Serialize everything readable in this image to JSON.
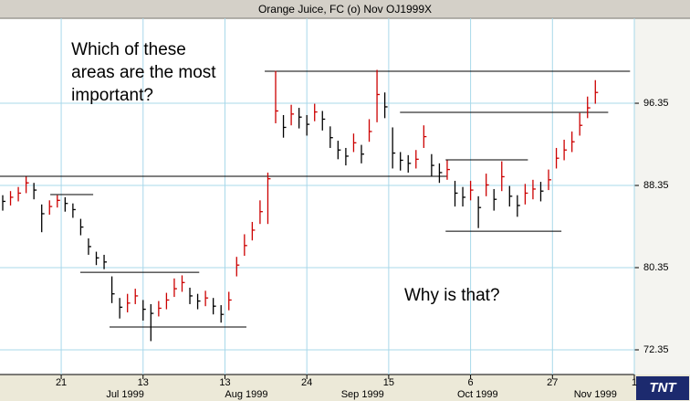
{
  "chart_data": {
    "type": "ohlc",
    "title": "Orange Juice, FC (o) Nov OJ1999X",
    "annotations": [
      {
        "lines": [
          "Which of these",
          "areas are the most",
          "important?"
        ],
        "x": 17.6,
        "y": 101.5
      },
      {
        "lines": [
          "Why is that?"
        ],
        "x": 103,
        "y": 77.6
      }
    ],
    "x": [
      0,
      2,
      4,
      6,
      8,
      10,
      12,
      14,
      16,
      18,
      20,
      22,
      24,
      26,
      28,
      30,
      32,
      34,
      36,
      38,
      40,
      42,
      44,
      46,
      48,
      50,
      52,
      54,
      56,
      58,
      60,
      62,
      64,
      66,
      68,
      70,
      72,
      74,
      76,
      78,
      80,
      82,
      84,
      86,
      88,
      90,
      92,
      94,
      96,
      98,
      100,
      102,
      104,
      106,
      108,
      110,
      112,
      114,
      116,
      118,
      120,
      122,
      124,
      126,
      128,
      130,
      132,
      134,
      136,
      138,
      140,
      142,
      144,
      146,
      148,
      150,
      152
    ],
    "high": [
      87.4,
      87.8,
      88.2,
      89.2,
      88.6,
      86.5,
      86.9,
      87.4,
      87.2,
      86.6,
      85.1,
      83.2,
      81.9,
      81.6,
      79.5,
      77.4,
      77.8,
      78.3,
      77.2,
      76.8,
      77.1,
      77.9,
      79.3,
      79.6,
      78.4,
      77.8,
      78.1,
      77.4,
      76.7,
      78.0,
      81.4,
      83.6,
      84.8,
      86.9,
      89.6,
      99.5,
      95.2,
      96.2,
      95.9,
      95.2,
      96.3,
      95.6,
      94.1,
      92.7,
      92.0,
      93.4,
      92.3,
      94.8,
      99.6,
      97.4,
      94.0,
      91.6,
      91.3,
      91.8,
      94.2,
      91.4,
      90.5,
      90.8,
      88.8,
      88.2,
      88.8,
      87.3,
      89.5,
      88.0,
      90.7,
      88.3,
      87.4,
      88.5,
      88.9,
      88.7,
      89.9,
      92.0,
      92.8,
      93.6,
      95.4,
      97.0,
      98.6
    ],
    "low": [
      85.9,
      86.4,
      86.8,
      87.6,
      87.0,
      83.8,
      85.5,
      86.2,
      85.8,
      85.2,
      83.5,
      81.6,
      80.6,
      80.2,
      76.9,
      75.4,
      76.0,
      76.8,
      75.2,
      73.2,
      75.6,
      76.3,
      77.5,
      78.0,
      76.8,
      76.3,
      76.6,
      75.8,
      75.0,
      76.2,
      79.5,
      81.5,
      83.0,
      84.6,
      84.6,
      94.4,
      93.0,
      94.2,
      93.9,
      93.2,
      94.6,
      93.7,
      92.0,
      90.9,
      90.3,
      91.6,
      90.5,
      92.6,
      94.5,
      94.9,
      90.0,
      89.8,
      89.6,
      90.0,
      92.0,
      89.2,
      88.6,
      88.9,
      86.3,
      86.3,
      86.9,
      84.2,
      87.3,
      85.9,
      87.8,
      86.3,
      85.3,
      86.5,
      87.0,
      86.8,
      87.9,
      90.0,
      90.8,
      91.6,
      93.2,
      94.9,
      96.3
    ],
    "close": [
      86.8,
      87.2,
      87.6,
      88.6,
      87.9,
      85.6,
      86.3,
      86.9,
      86.6,
      86.0,
      84.3,
      82.4,
      81.3,
      80.9,
      77.8,
      76.5,
      76.9,
      77.6,
      76.3,
      75.9,
      76.4,
      77.2,
      78.3,
      78.9,
      77.6,
      77.1,
      77.4,
      76.6,
      75.8,
      77.2,
      80.6,
      82.5,
      84.0,
      85.8,
      89.0,
      95.6,
      94.0,
      95.3,
      95.0,
      94.3,
      95.5,
      94.8,
      93.0,
      91.8,
      91.2,
      92.5,
      91.4,
      93.6,
      97.2,
      96.0,
      91.5,
      90.8,
      90.5,
      90.9,
      93.1,
      90.3,
      89.6,
      89.9,
      87.6,
      87.2,
      87.9,
      86.2,
      88.4,
      87.0,
      89.2,
      87.3,
      86.4,
      87.6,
      88.0,
      87.8,
      88.9,
      91.0,
      91.8,
      92.6,
      94.2,
      95.9,
      97.4
    ],
    "up_color": "#cc0000",
    "down_color": "#000000",
    "levels": [
      {
        "value": 99.46,
        "x": [
          67.2,
          160.9
        ]
      },
      {
        "value": 95.46,
        "x": [
          101.9,
          155.3
        ]
      },
      {
        "value": 89.24,
        "x": [
          -0.7,
          114.1
        ]
      },
      {
        "value": 87.46,
        "x": [
          12.2,
          23.2
        ]
      },
      {
        "value": 90.84,
        "x": [
          113.6,
          134.7
        ]
      },
      {
        "value": 83.9,
        "x": [
          113.6,
          143.3
        ]
      },
      {
        "value": 79.9,
        "x": [
          19.9,
          50.4
        ]
      },
      {
        "value": 74.57,
        "x": [
          27.4,
          62.5
        ]
      }
    ],
    "xlim": [
      -0.7,
      162
    ],
    "xticks": [
      {
        "value": 15,
        "label": "21"
      },
      {
        "value": 36,
        "label": "13"
      },
      {
        "value": 57,
        "label": "13"
      },
      {
        "value": 78,
        "label": "24"
      },
      {
        "value": 99,
        "label": "15"
      },
      {
        "value": 120,
        "label": "6"
      },
      {
        "value": 141,
        "label": "27"
      },
      {
        "value": 162,
        "label": "1"
      }
    ],
    "month_labels": [
      {
        "value": 31.4,
        "label": "Jul 1999"
      },
      {
        "value": 62.5,
        "label": "Aug 1999"
      },
      {
        "value": 92.3,
        "label": "Sep 1999"
      },
      {
        "value": 121.8,
        "label": "Oct 1999"
      },
      {
        "value": 152.0,
        "label": "Nov 1999"
      }
    ],
    "ylim": [
      69.95,
      104.62
    ],
    "yticks": [
      72.35,
      80.35,
      88.35,
      96.35
    ],
    "grid": true,
    "logo": "TNT"
  }
}
